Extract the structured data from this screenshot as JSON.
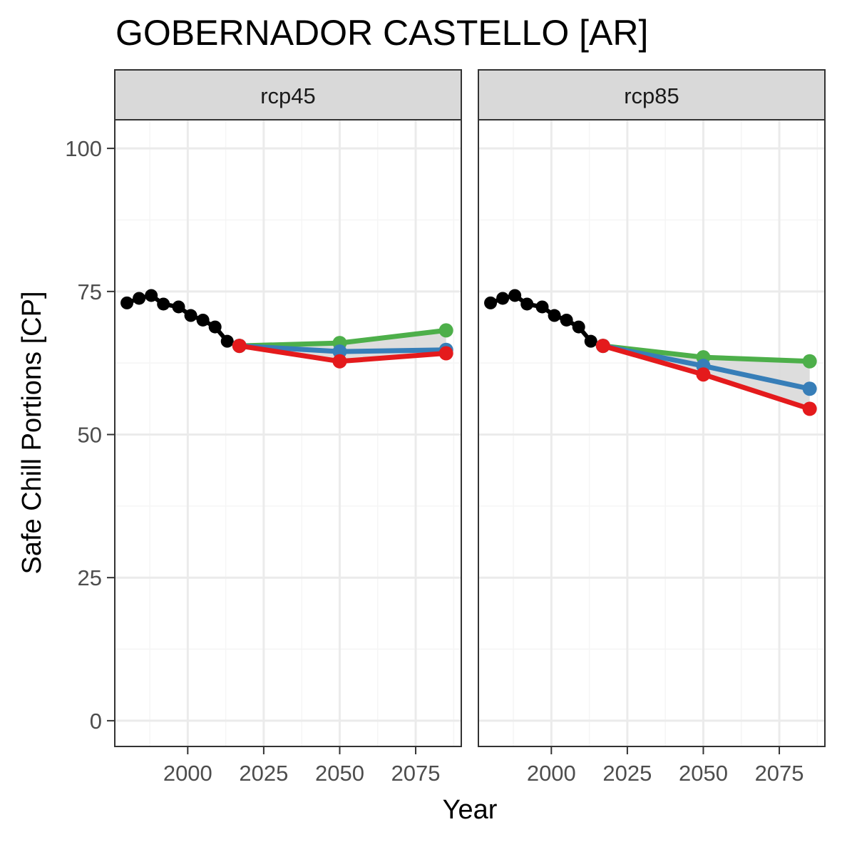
{
  "chart_data": {
    "type": "line",
    "title": "GOBERNADOR CASTELLO [AR]",
    "xlabel": "Year",
    "ylabel": "Safe Chill Portions [CP]",
    "xlim": [
      1976,
      2090
    ],
    "ylim": [
      -4.5,
      105
    ],
    "x_ticks": [
      2000,
      2025,
      2050,
      2075
    ],
    "y_ticks": [
      0,
      25,
      50,
      75,
      100
    ],
    "grid": true,
    "legend": "none",
    "colors": {
      "historic": "#000000",
      "green": "#4daf4a",
      "blue": "#377eb8",
      "red": "#e41a1c",
      "band": "#d9d9d9",
      "strip_bg": "#d9d9d9",
      "panel_border": "#333333",
      "grid_major": "#ebebeb",
      "grid_minor": "#f5f5f5"
    },
    "historic": {
      "x": [
        1980,
        1984,
        1988,
        1992,
        1997,
        2001,
        2005,
        2009,
        2013,
        2017
      ],
      "y": [
        73.0,
        73.8,
        74.3,
        72.8,
        72.3,
        70.8,
        70.0,
        68.8,
        66.3,
        65.5
      ]
    },
    "panels": [
      {
        "label": "rcp45",
        "scenarios": {
          "x": [
            2017,
            2050,
            2085
          ],
          "green": [
            65.5,
            66.0,
            68.2
          ],
          "blue": [
            65.5,
            64.5,
            64.8
          ],
          "red": [
            65.5,
            62.8,
            64.2
          ]
        }
      },
      {
        "label": "rcp85",
        "scenarios": {
          "x": [
            2017,
            2050,
            2085
          ],
          "green": [
            65.5,
            63.5,
            62.8
          ],
          "blue": [
            65.5,
            62.0,
            58.0
          ],
          "red": [
            65.5,
            60.5,
            54.5
          ]
        }
      }
    ]
  }
}
